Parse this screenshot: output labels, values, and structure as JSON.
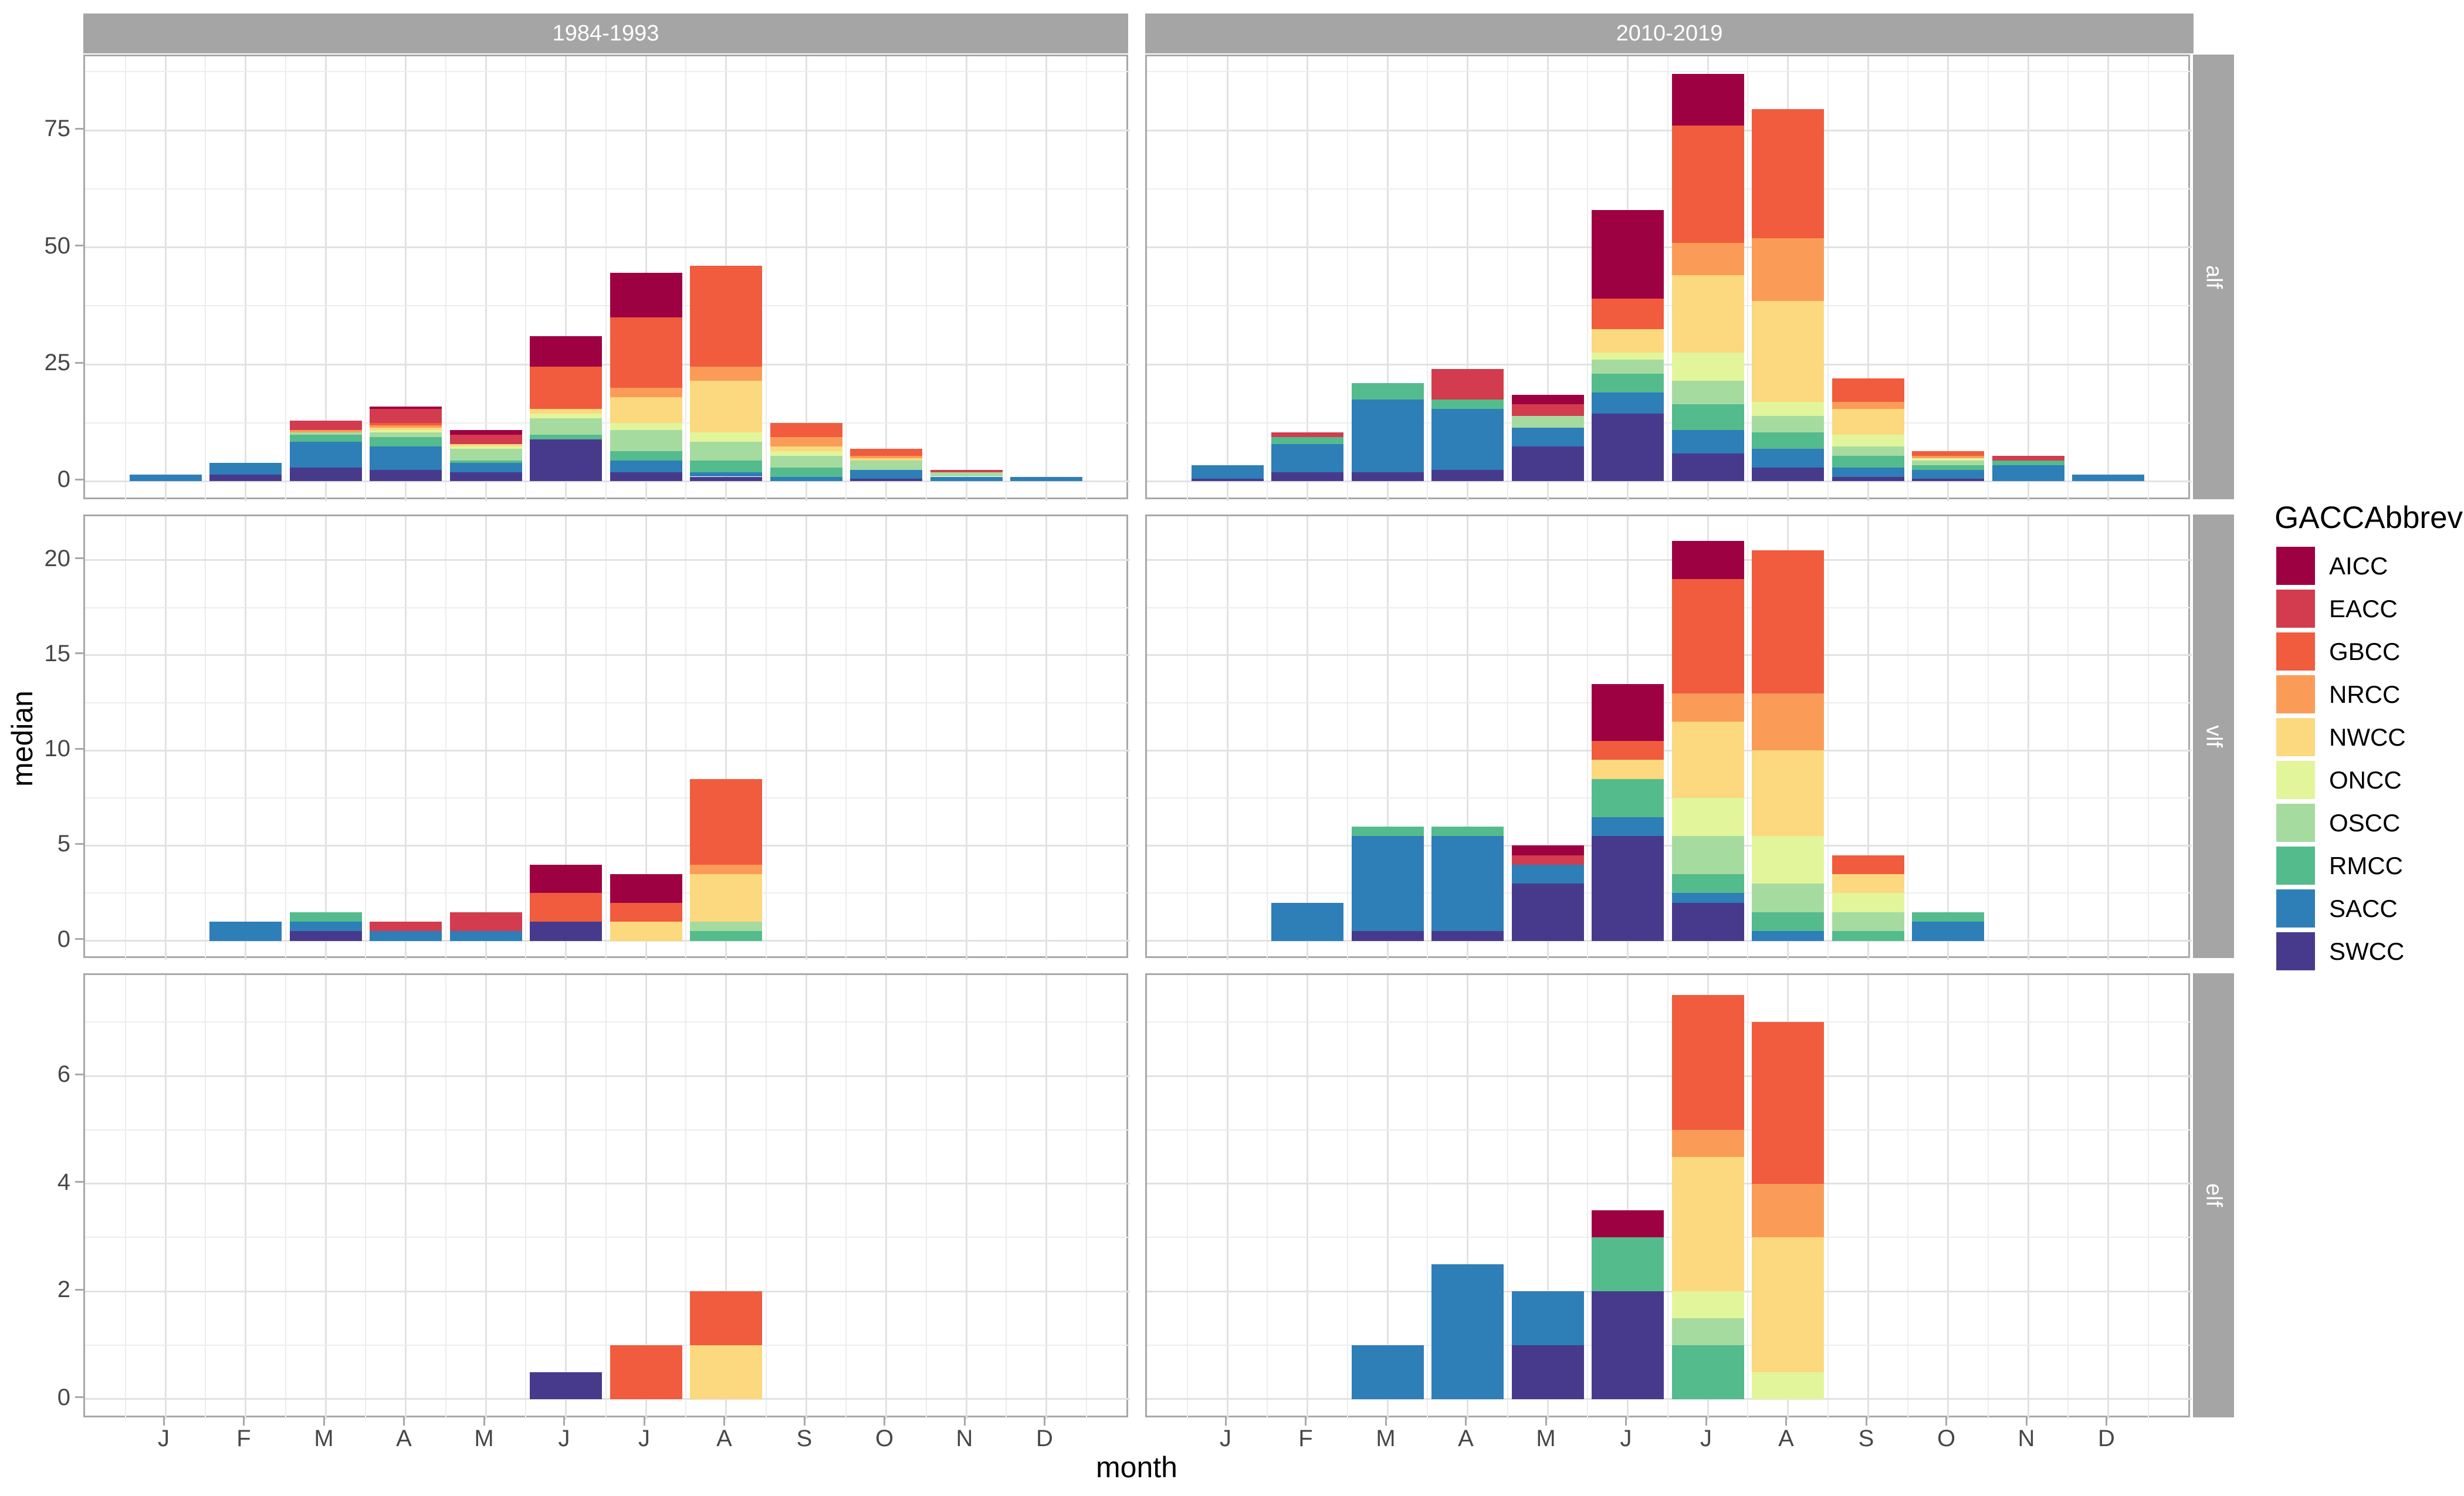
{
  "figure": {
    "facet_cols": [
      "1984-1993",
      "2010-2019"
    ],
    "facet_rows": [
      "alf",
      "vlf",
      "elf"
    ],
    "x_title": "month",
    "y_title": "median",
    "colors": {
      "strip_bg": "#A5A5A5",
      "grid_major": "#E2E2E2",
      "grid_minor": "#EDEDED",
      "panel_border": "#A8A8A8",
      "tick_text": "#474747"
    }
  },
  "legend": {
    "title": "GACCAbbrev",
    "entries": [
      {
        "label": "AICC",
        "color": "#9E0142"
      },
      {
        "label": "EACC",
        "color": "#D23C4E"
      },
      {
        "label": "GBCC",
        "color": "#F05C3D"
      },
      {
        "label": "NRCC",
        "color": "#FA9C58"
      },
      {
        "label": "NWCC",
        "color": "#FCD87E"
      },
      {
        "label": "ONCC",
        "color": "#E2F59B"
      },
      {
        "label": "OSCC",
        "color": "#A6DBA0"
      },
      {
        "label": "RMCC",
        "color": "#54BB8D"
      },
      {
        "label": "SACC",
        "color": "#2E7EB8"
      },
      {
        "label": "SWCC",
        "color": "#473A8C"
      }
    ]
  },
  "chart_data": {
    "type": "bar",
    "stacked": true,
    "categories": [
      "J",
      "F",
      "M",
      "A",
      "M",
      "J",
      "J",
      "A",
      "S",
      "O",
      "N",
      "D"
    ],
    "xlabel": "month",
    "ylabel": "median",
    "legend_position": "right",
    "stack_order_bottom_to_top": [
      "SWCC",
      "SACC",
      "RMCC",
      "OSCC",
      "ONCC",
      "NWCC",
      "NRCC",
      "GBCC",
      "EACC",
      "AICC"
    ],
    "rows": [
      {
        "facet_row": "alf",
        "yticks": [
          0,
          25,
          50,
          75
        ],
        "minor_yticks": [
          12.5,
          37.5,
          62.5,
          87.5
        ],
        "ylim": [
          -4.2,
          90.8
        ]
      },
      {
        "facet_row": "vlf",
        "yticks": [
          0,
          5,
          10,
          15,
          20
        ],
        "minor_yticks": [
          2.5,
          7.5,
          12.5,
          17.5
        ],
        "ylim": [
          -1.0,
          22.3
        ]
      },
      {
        "facet_row": "elf",
        "yticks": [
          0,
          2,
          4,
          6
        ],
        "minor_yticks": [
          1,
          3,
          5,
          7
        ],
        "ylim": [
          -0.375,
          7.875
        ]
      }
    ],
    "panels": [
      {
        "row": "alf",
        "col": "1984-1993",
        "series": {
          "AICC": [
            0,
            0,
            0,
            0.5,
            1,
            6.5,
            9.5,
            0,
            0,
            0,
            0,
            0
          ],
          "EACC": [
            0,
            0,
            2,
            3,
            2,
            0,
            0,
            0,
            0,
            0,
            0.5,
            0
          ],
          "GBCC": [
            0,
            0,
            0,
            0.5,
            0,
            9,
            15,
            21.5,
            3,
            1.5,
            0,
            0
          ],
          "NRCC": [
            0,
            0,
            0.5,
            0.5,
            0,
            0,
            2,
            3,
            2,
            0.5,
            0,
            0
          ],
          "NWCC": [
            0,
            0,
            0,
            0.5,
            0.5,
            1,
            5.5,
            11,
            1,
            0.5,
            0,
            0
          ],
          "ONCC": [
            0,
            0,
            0,
            0.5,
            0.5,
            1,
            1.5,
            2,
            1,
            0,
            0,
            0
          ],
          "OSCC": [
            0,
            0,
            0.5,
            1,
            2.5,
            3.5,
            4.5,
            4,
            2.5,
            2,
            1,
            0
          ],
          "RMCC": [
            0,
            0,
            1.5,
            2,
            0.5,
            1,
            2,
            2.5,
            2,
            0,
            0,
            0
          ],
          "SACC": [
            1.5,
            2.5,
            5.5,
            5,
            2,
            0,
            2.5,
            1,
            1,
            2,
            1,
            1
          ],
          "SWCC": [
            0,
            1.5,
            3,
            2.5,
            2,
            9,
            2,
            1,
            0,
            0.5,
            0,
            0
          ]
        }
      },
      {
        "row": "alf",
        "col": "2010-2019",
        "series": {
          "AICC": [
            0,
            0,
            0,
            0,
            2,
            19,
            11,
            0,
            0,
            0,
            0,
            0
          ],
          "EACC": [
            0,
            1,
            0,
            6.5,
            2.5,
            0,
            0,
            0,
            0,
            0,
            1,
            0
          ],
          "GBCC": [
            0,
            0,
            0,
            0,
            0,
            6.5,
            25,
            27.5,
            5,
            1,
            0,
            0
          ],
          "NRCC": [
            0,
            0,
            0,
            0,
            0,
            0,
            7,
            13.5,
            1.5,
            0.5,
            0,
            0
          ],
          "NWCC": [
            0,
            0,
            0,
            0,
            0,
            5,
            16.5,
            21.5,
            5.5,
            0,
            0,
            0
          ],
          "ONCC": [
            0,
            0,
            0,
            0,
            0,
            1.5,
            6,
            3,
            2.5,
            0.5,
            0,
            0
          ],
          "OSCC": [
            0,
            0,
            0,
            0,
            2.5,
            3,
            5,
            3.5,
            2,
            1,
            0,
            0
          ],
          "RMCC": [
            0,
            1.5,
            3.5,
            2,
            0,
            4,
            5.5,
            3.5,
            2.5,
            1,
            1,
            0
          ],
          "SACC": [
            3,
            6,
            15.5,
            13,
            4,
            4.5,
            5,
            4,
            2,
            2,
            3.5,
            1.5
          ],
          "SWCC": [
            0.5,
            2,
            2,
            2.5,
            7.5,
            14.5,
            6,
            3,
            1,
            0.5,
            0,
            0
          ]
        }
      },
      {
        "row": "vlf",
        "col": "1984-1993",
        "series": {
          "AICC": [
            0,
            0,
            0,
            0,
            0,
            1.5,
            1.5,
            0,
            0,
            0,
            0,
            0
          ],
          "EACC": [
            0,
            0,
            0,
            0.5,
            1,
            0,
            0,
            0,
            0,
            0,
            0,
            0
          ],
          "GBCC": [
            0,
            0,
            0,
            0,
            0,
            1.5,
            1,
            4.5,
            0,
            0,
            0,
            0
          ],
          "NRCC": [
            0,
            0,
            0,
            0,
            0,
            0,
            0,
            0.5,
            0,
            0,
            0,
            0
          ],
          "NWCC": [
            0,
            0,
            0,
            0,
            0,
            0,
            1,
            2.5,
            0,
            0,
            0,
            0
          ],
          "ONCC": [
            0,
            0,
            0,
            0,
            0,
            0,
            0,
            0,
            0,
            0,
            0,
            0
          ],
          "OSCC": [
            0,
            0,
            0,
            0,
            0,
            0,
            0,
            0.5,
            0,
            0,
            0,
            0
          ],
          "RMCC": [
            0,
            0,
            0.5,
            0,
            0,
            0,
            0,
            0.5,
            0,
            0,
            0,
            0
          ],
          "SACC": [
            0,
            1,
            0.5,
            0.5,
            0.5,
            0,
            0,
            0,
            0,
            0,
            0,
            0
          ],
          "SWCC": [
            0,
            0,
            0.5,
            0,
            0,
            1,
            0,
            0,
            0,
            0,
            0,
            0
          ]
        }
      },
      {
        "row": "vlf",
        "col": "2010-2019",
        "series": {
          "AICC": [
            0,
            0,
            0,
            0,
            0.5,
            3,
            2,
            0,
            0,
            0,
            0,
            0
          ],
          "EACC": [
            0,
            0,
            0,
            0,
            0.5,
            0,
            0,
            0,
            0,
            0,
            0,
            0
          ],
          "GBCC": [
            0,
            0,
            0,
            0,
            0,
            1,
            6,
            7.5,
            1,
            0,
            0,
            0
          ],
          "NRCC": [
            0,
            0,
            0,
            0,
            0,
            0,
            1.5,
            3,
            0,
            0,
            0,
            0
          ],
          "NWCC": [
            0,
            0,
            0,
            0,
            0,
            1,
            4,
            4.5,
            1,
            0,
            0,
            0
          ],
          "ONCC": [
            0,
            0,
            0,
            0,
            0,
            0,
            2,
            2.5,
            1,
            0,
            0,
            0
          ],
          "OSCC": [
            0,
            0,
            0,
            0,
            0,
            0,
            2,
            1.5,
            1,
            0,
            0,
            0
          ],
          "RMCC": [
            0,
            0,
            0.5,
            0.5,
            0,
            2,
            1,
            1,
            0.5,
            0.5,
            0,
            0
          ],
          "SACC": [
            0,
            2,
            5,
            5,
            1,
            1,
            0.5,
            0.5,
            0,
            1,
            0,
            0
          ],
          "SWCC": [
            0,
            0,
            0.5,
            0.5,
            3,
            5.5,
            2,
            0,
            0,
            0,
            0,
            0
          ]
        }
      },
      {
        "row": "elf",
        "col": "1984-1993",
        "series": {
          "AICC": [
            0,
            0,
            0,
            0,
            0,
            0,
            0,
            0,
            0,
            0,
            0,
            0
          ],
          "EACC": [
            0,
            0,
            0,
            0,
            0,
            0,
            0,
            0,
            0,
            0,
            0,
            0
          ],
          "GBCC": [
            0,
            0,
            0,
            0,
            0,
            0,
            1,
            1,
            0,
            0,
            0,
            0
          ],
          "NRCC": [
            0,
            0,
            0,
            0,
            0,
            0,
            0,
            0,
            0,
            0,
            0,
            0
          ],
          "NWCC": [
            0,
            0,
            0,
            0,
            0,
            0,
            0,
            1,
            0,
            0,
            0,
            0
          ],
          "ONCC": [
            0,
            0,
            0,
            0,
            0,
            0,
            0,
            0,
            0,
            0,
            0,
            0
          ],
          "OSCC": [
            0,
            0,
            0,
            0,
            0,
            0,
            0,
            0,
            0,
            0,
            0,
            0
          ],
          "RMCC": [
            0,
            0,
            0,
            0,
            0,
            0,
            0,
            0,
            0,
            0,
            0,
            0
          ],
          "SACC": [
            0,
            0,
            0,
            0,
            0,
            0,
            0,
            0,
            0,
            0,
            0,
            0
          ],
          "SWCC": [
            0,
            0,
            0,
            0,
            0,
            0.5,
            0,
            0,
            0,
            0,
            0,
            0
          ]
        }
      },
      {
        "row": "elf",
        "col": "2010-2019",
        "series": {
          "AICC": [
            0,
            0,
            0,
            0,
            0,
            0.5,
            0,
            0,
            0,
            0,
            0,
            0
          ],
          "EACC": [
            0,
            0,
            0,
            0,
            0,
            0,
            0,
            0,
            0,
            0,
            0,
            0
          ],
          "GBCC": [
            0,
            0,
            0,
            0,
            0,
            0,
            2.5,
            3,
            0,
            0,
            0,
            0
          ],
          "NRCC": [
            0,
            0,
            0,
            0,
            0,
            0,
            0.5,
            1,
            0,
            0,
            0,
            0
          ],
          "NWCC": [
            0,
            0,
            0,
            0,
            0,
            0,
            2.5,
            2.5,
            0,
            0,
            0,
            0
          ],
          "ONCC": [
            0,
            0,
            0,
            0,
            0,
            0,
            0.5,
            0.5,
            0,
            0,
            0,
            0
          ],
          "OSCC": [
            0,
            0,
            0,
            0,
            0,
            0,
            0.5,
            0,
            0,
            0,
            0,
            0
          ],
          "RMCC": [
            0,
            0,
            0,
            0,
            0,
            1,
            1,
            0,
            0,
            0,
            0,
            0
          ],
          "SACC": [
            0,
            0,
            1,
            2.5,
            1,
            0,
            0,
            0,
            0,
            0,
            0,
            0
          ],
          "SWCC": [
            0,
            0,
            0,
            0,
            1,
            2,
            0,
            0,
            0,
            0,
            0,
            0
          ]
        }
      }
    ]
  }
}
